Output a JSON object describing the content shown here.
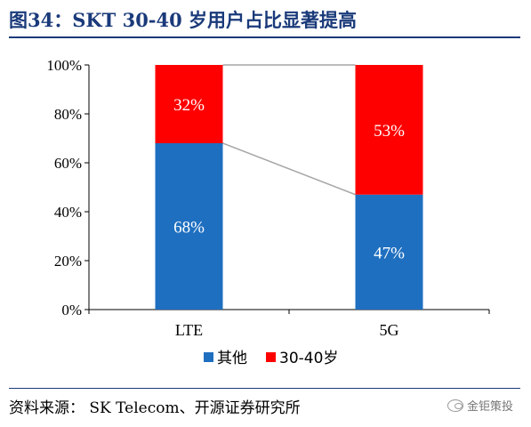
{
  "title": "图34：SKT 30-40 岁用户占比显著提高",
  "source": "资料来源：   SK Telecom、开源证券研究所",
  "brand": "金钜策投",
  "colors": {
    "other": "#1f6fc0",
    "age_30_40": "#ff0000",
    "connector": "#a6a6a6",
    "title": "#1a3a7a"
  },
  "chart_data": {
    "type": "bar",
    "stacked": true,
    "categories": [
      "LTE",
      "5G"
    ],
    "series": [
      {
        "name": "其他",
        "values": [
          68,
          47
        ],
        "labels": [
          "68%",
          "47%"
        ],
        "color": "#1f6fc0"
      },
      {
        "name": "30-40岁",
        "values": [
          32,
          53
        ],
        "labels": [
          "32%",
          "53%"
        ],
        "color": "#ff0000"
      }
    ],
    "ylim": [
      0,
      100
    ],
    "yticks": [
      0,
      20,
      40,
      60,
      80,
      100
    ],
    "ytick_labels": [
      "0%",
      "20%",
      "40%",
      "60%",
      "80%",
      "100%"
    ],
    "grid": false,
    "legend": "bottom",
    "series_lines": true
  }
}
